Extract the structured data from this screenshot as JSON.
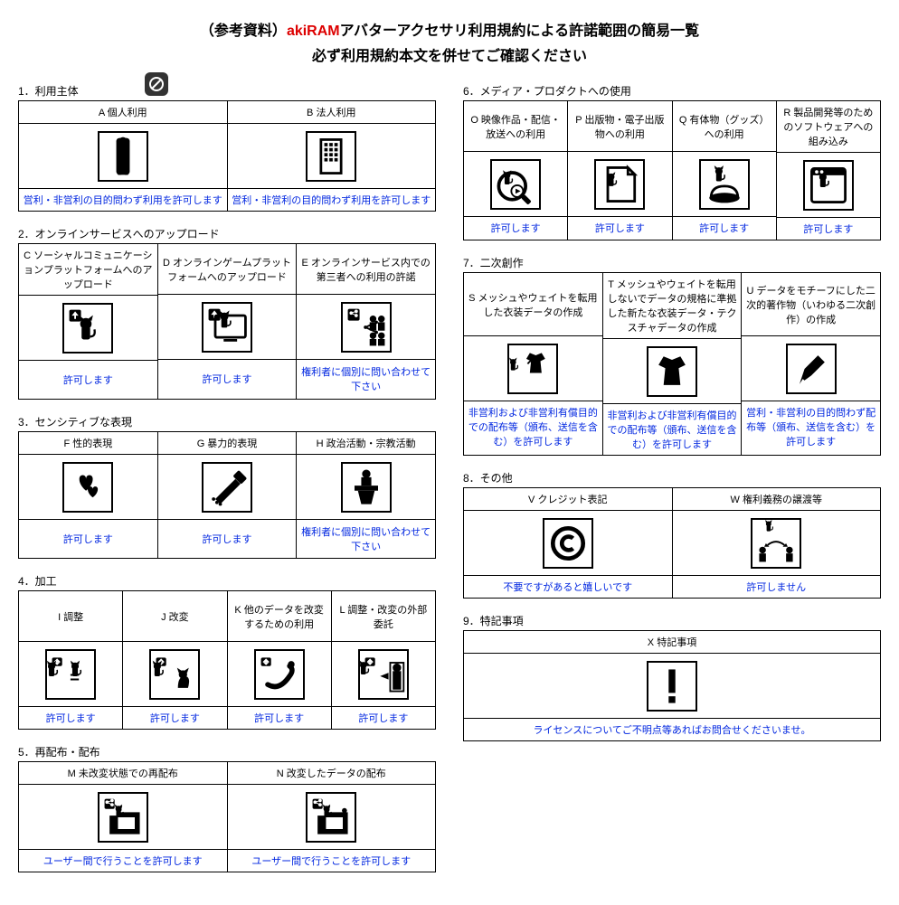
{
  "title": {
    "prefix": "（参考資料）",
    "brand": "akiRAM",
    "rest1": "アバターアクセサリ利用規約による許諾範囲の簡易一覧",
    "line2": "必ず利用規約本文を併せてご確認ください"
  },
  "colors": {
    "link": "#0026e0",
    "brand": "#d00000",
    "border": "#000000",
    "bg": "#ffffff"
  },
  "sections_left": [
    {
      "num": "1．",
      "title": "利用主体",
      "cells": [
        {
          "h": "A 個人利用",
          "f": "営利・非営利の目的問わず利用を許可します",
          "icon": "person"
        },
        {
          "h": "B 法人利用",
          "f": "営利・非営利の目的問わず利用を許可します",
          "icon": "building"
        }
      ]
    },
    {
      "num": "2．",
      "title": "オンラインサービスへのアップロード",
      "header_tall": true,
      "footer_tall": true,
      "cells": [
        {
          "h": "C ソーシャルコミュニケーションプラットフォームへのアップロード",
          "f": "許可します",
          "icon": "upload-cat"
        },
        {
          "h": "D オンラインゲームプラットフォームへのアップロード",
          "f": "許可します",
          "icon": "upload-cat-monitor"
        },
        {
          "h": "E オンラインサービス内での第三者への利用の許諾",
          "f": "権利者に個別に問い合わせて下さい",
          "icon": "share-people"
        }
      ]
    },
    {
      "num": "3．",
      "title": "センシティブな表現",
      "footer_tall": true,
      "cells": [
        {
          "h": "F 性的表現",
          "f": "許可します",
          "icon": "hearts"
        },
        {
          "h": "G 暴力的表現",
          "f": "許可します",
          "icon": "knife"
        },
        {
          "h": "H 政治活動・宗教活動",
          "f": "権利者に個別に問い合わせて下さい",
          "icon": "podium"
        }
      ]
    },
    {
      "num": "4．",
      "title": "加工",
      "header_tall": true,
      "cells": [
        {
          "h": "I 調整",
          "f": "許可します",
          "icon": "adjust"
        },
        {
          "h": "J 改変",
          "f": "許可します",
          "icon": "modify"
        },
        {
          "h": "K 他のデータを改変するための利用",
          "f": "許可します",
          "icon": "arrow-tail"
        },
        {
          "h": "L 調整・改変の外部委託",
          "f": "許可します",
          "icon": "outsource"
        }
      ]
    },
    {
      "num": "5．",
      "title": "再配布・配布",
      "cells": [
        {
          "h": "M 未改変状態での再配布",
          "f": "ユーザー間で行うことを許可します",
          "icon": "redis-folder"
        },
        {
          "h": "N 改変したデータの配布",
          "f": "ユーザー間で行うことを許可します",
          "icon": "redis-folder-mod"
        }
      ]
    }
  ],
  "sections_right": [
    {
      "num": "6．",
      "title": "メディア・プロダクトへの使用",
      "header_tall": true,
      "cells": [
        {
          "h": "O 映像作品・配信・放送への利用",
          "f": "許可します",
          "icon": "video-cat"
        },
        {
          "h": "P 出版物・電子出版物への利用",
          "f": "許可します",
          "icon": "doc-cat"
        },
        {
          "h": "Q 有体物（グッズ）への利用",
          "f": "許可します",
          "icon": "goods-cat"
        },
        {
          "h": "R 製品開発等のためのソフトウェアへの組み込み",
          "f": "許可します",
          "icon": "app-cat"
        }
      ]
    },
    {
      "num": "7．",
      "title": "二次創作",
      "header_tall5": true,
      "footer_tall4": true,
      "cells": [
        {
          "h": "S メッシュやウェイトを転用した衣装データの作成",
          "f": "非営利および非営利有償目的での配布等（頒布、送信を含む）を許可します",
          "icon": "clothes-swap"
        },
        {
          "h": "T メッシュやウェイトを転用しないでデータの規格に準拠した新たな衣装データ・テクスチャデータの作成",
          "f": "非営利および非営利有償目的での配布等（頒布、送信を含む）を許可します",
          "icon": "clothes"
        },
        {
          "h": "U データをモチーフにした二次的著作物（いわゆる二次創作）の作成",
          "f": "営利・非営利の目的問わず配布等（頒布、送信を含む）を許可します",
          "icon": "pen"
        }
      ]
    },
    {
      "num": "8．",
      "title": "その他",
      "cells": [
        {
          "h": "V クレジット表記",
          "f": "不要ですがあると嬉しいです",
          "icon": "copyright"
        },
        {
          "h": "W 権利義務の譲渡等",
          "f": "許可しません",
          "icon": "transfer-people"
        }
      ]
    },
    {
      "num": "9．",
      "title": "特記事項",
      "cells": [
        {
          "h": "X 特記事項",
          "f": "ライセンスについてご不明点等あればお問合せくださいませ。",
          "icon": "exclaim"
        }
      ]
    }
  ]
}
